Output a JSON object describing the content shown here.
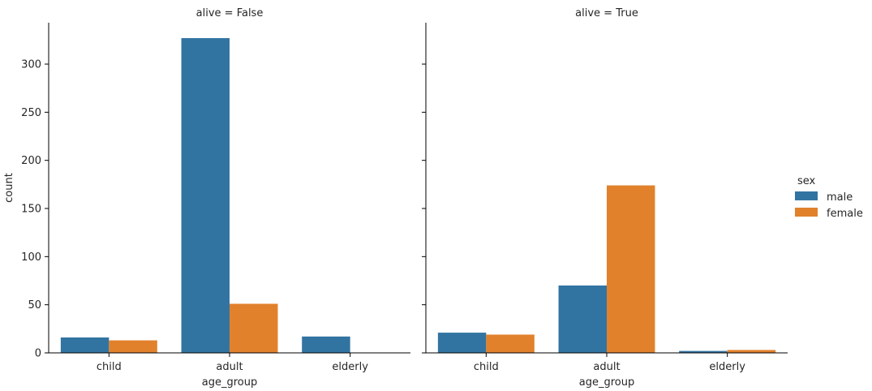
{
  "chart_data": {
    "type": "bar",
    "xlabel": "age_group",
    "ylabel": "count",
    "categories": [
      "child",
      "adult",
      "elderly"
    ],
    "ylim": [
      0,
      343
    ],
    "yticks": [
      0,
      50,
      100,
      150,
      200,
      250,
      300
    ],
    "legend": {
      "title": "sex",
      "placement": "right",
      "entries": [
        "male",
        "female"
      ]
    },
    "colors": {
      "male": "#3274a1",
      "female": "#e1812c"
    },
    "panels": [
      {
        "title": "alive = False",
        "series": [
          {
            "name": "male",
            "values": [
              16,
              327,
              17
            ]
          },
          {
            "name": "female",
            "values": [
              13,
              51,
              0
            ]
          }
        ]
      },
      {
        "title": "alive = True",
        "series": [
          {
            "name": "male",
            "values": [
              21,
              70,
              2
            ]
          },
          {
            "name": "female",
            "values": [
              19,
              174,
              3
            ]
          }
        ]
      }
    ]
  }
}
